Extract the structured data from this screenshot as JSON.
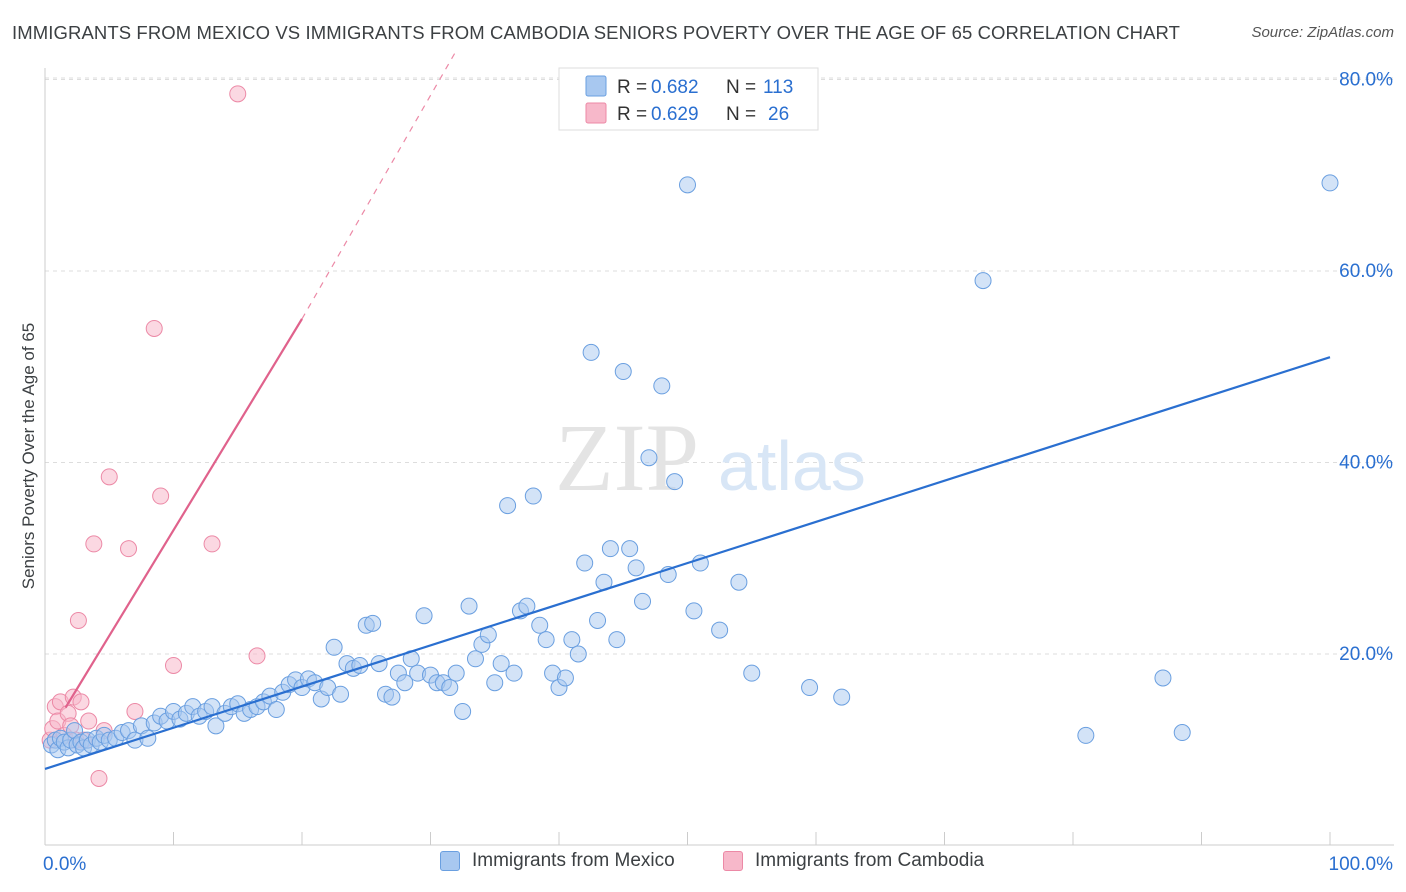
{
  "header": {
    "title": "IMMIGRANTS FROM MEXICO VS IMMIGRANTS FROM CAMBODIA SENIORS POVERTY OVER THE AGE OF 65 CORRELATION CHART",
    "source": "Source: ZipAtlas.com"
  },
  "watermark": {
    "zip": "ZIP",
    "atlas": "atlas"
  },
  "colors": {
    "mexico_fill": "#a8c8f0",
    "mexico_stroke": "#6a9fe0",
    "mexico_line": "#2a6fd0",
    "cambodia_fill": "#f7b8ca",
    "cambodia_stroke": "#ec89a6",
    "cambodia_line": "#e0628c",
    "value_text": "#2a6fd0",
    "grid": "#dddddd"
  },
  "legend": {
    "mexico": {
      "r_label": "R = ",
      "r_value": "0.682",
      "n_label": "N = ",
      "n_value": "113"
    },
    "cambodia": {
      "r_label": "R = ",
      "r_value": "0.629",
      "n_label": "N = ",
      "n_value": "26"
    }
  },
  "chart_data": {
    "type": "scatter",
    "title": "IMMIGRANTS FROM MEXICO VS IMMIGRANTS FROM CAMBODIA SENIORS POVERTY OVER THE AGE OF 65 CORRELATION CHART",
    "xlabel": "",
    "ylabel": "Seniors Poverty Over the Age of 65",
    "xlim": [
      0,
      100
    ],
    "ylim": [
      0,
      82
    ],
    "x_tick_labels": [
      {
        "value": 0,
        "label": "0.0%"
      },
      {
        "value": 100,
        "label": "100.0%"
      }
    ],
    "y_tick_labels": [
      {
        "value": 20,
        "label": "20.0%"
      },
      {
        "value": 40,
        "label": "40.0%"
      },
      {
        "value": 60,
        "label": "60.0%"
      },
      {
        "value": 80,
        "label": "80.0%"
      }
    ],
    "grid": true,
    "legend_position": "top-center",
    "series": [
      {
        "name": "Immigrants from Mexico",
        "r": 0.682,
        "n": 113,
        "trend": {
          "x": [
            0,
            100
          ],
          "y": [
            8.0,
            51.0
          ],
          "style": "solid"
        },
        "points": [
          [
            0.5,
            10.5
          ],
          [
            0.8,
            11
          ],
          [
            1,
            10
          ],
          [
            1.2,
            11.2
          ],
          [
            1.5,
            10.8
          ],
          [
            1.8,
            10.2
          ],
          [
            2,
            11
          ],
          [
            2.3,
            12
          ],
          [
            2.5,
            10.5
          ],
          [
            2.8,
            10.8
          ],
          [
            3,
            10.2
          ],
          [
            3.3,
            11
          ],
          [
            3.6,
            10.5
          ],
          [
            4,
            11.2
          ],
          [
            4.3,
            10.8
          ],
          [
            4.6,
            11.5
          ],
          [
            5,
            11
          ],
          [
            5.5,
            11.2
          ],
          [
            6,
            11.8
          ],
          [
            6.5,
            12
          ],
          [
            7,
            11
          ],
          [
            7.5,
            12.5
          ],
          [
            8,
            11.2
          ],
          [
            8.5,
            12.8
          ],
          [
            9,
            13.5
          ],
          [
            9.5,
            13
          ],
          [
            10,
            14
          ],
          [
            10.5,
            13.2
          ],
          [
            11,
            13.8
          ],
          [
            11.5,
            14.5
          ],
          [
            12,
            13.5
          ],
          [
            12.5,
            14
          ],
          [
            13,
            14.5
          ],
          [
            13.3,
            12.5
          ],
          [
            14,
            13.8
          ],
          [
            14.5,
            14.5
          ],
          [
            15,
            14.8
          ],
          [
            15.5,
            13.8
          ],
          [
            16,
            14.2
          ],
          [
            16.5,
            14.5
          ],
          [
            17,
            15
          ],
          [
            17.5,
            15.6
          ],
          [
            18,
            14.2
          ],
          [
            18.5,
            16
          ],
          [
            19,
            16.8
          ],
          [
            19.5,
            17.3
          ],
          [
            20,
            16.5
          ],
          [
            20.5,
            17.4
          ],
          [
            21,
            17
          ],
          [
            21.5,
            15.3
          ],
          [
            22,
            16.5
          ],
          [
            22.5,
            20.7
          ],
          [
            23,
            15.8
          ],
          [
            23.5,
            19
          ],
          [
            24,
            18.5
          ],
          [
            24.5,
            18.8
          ],
          [
            25,
            23
          ],
          [
            25.5,
            23.2
          ],
          [
            26,
            19
          ],
          [
            26.5,
            15.8
          ],
          [
            27,
            15.5
          ],
          [
            27.5,
            18
          ],
          [
            28,
            17
          ],
          [
            28.5,
            19.5
          ],
          [
            29,
            18
          ],
          [
            29.5,
            24
          ],
          [
            30,
            17.8
          ],
          [
            30.5,
            17
          ],
          [
            31,
            17
          ],
          [
            31.5,
            16.5
          ],
          [
            32,
            18
          ],
          [
            32.5,
            14
          ],
          [
            33,
            25
          ],
          [
            33.5,
            19.5
          ],
          [
            34,
            21
          ],
          [
            34.5,
            22
          ],
          [
            35,
            17
          ],
          [
            35.5,
            19
          ],
          [
            36,
            35.5
          ],
          [
            36.5,
            18
          ],
          [
            37,
            24.5
          ],
          [
            37.5,
            25
          ],
          [
            38,
            36.5
          ],
          [
            38.5,
            23
          ],
          [
            39,
            21.5
          ],
          [
            39.5,
            18
          ],
          [
            40,
            16.5
          ],
          [
            40.5,
            17.5
          ],
          [
            41,
            21.5
          ],
          [
            41.5,
            20
          ],
          [
            42,
            29.5
          ],
          [
            42.5,
            51.5
          ],
          [
            43,
            23.5
          ],
          [
            43.5,
            27.5
          ],
          [
            44,
            31
          ],
          [
            44.5,
            21.5
          ],
          [
            45,
            49.5
          ],
          [
            45.5,
            31
          ],
          [
            46,
            29
          ],
          [
            46.5,
            25.5
          ],
          [
            47,
            40.5
          ],
          [
            48,
            48
          ],
          [
            48.5,
            28.3
          ],
          [
            49,
            38
          ],
          [
            50,
            69
          ],
          [
            50.5,
            24.5
          ],
          [
            51,
            29.5
          ],
          [
            52.5,
            22.5
          ],
          [
            54,
            27.5
          ],
          [
            55,
            18
          ],
          [
            59.5,
            16.5
          ],
          [
            62,
            15.5
          ],
          [
            73,
            59
          ],
          [
            81,
            11.5
          ],
          [
            87,
            17.5
          ],
          [
            88.5,
            11.8
          ],
          [
            100,
            69.2
          ]
        ]
      },
      {
        "name": "Immigrants from Cambodia",
        "r": 0.629,
        "n": 26,
        "trend": {
          "x": [
            1.6,
            20
          ],
          "y": [
            14.4,
            55.0
          ],
          "style": "solid",
          "extension_x": [
            20,
            32
          ],
          "extension_y": [
            55.0,
            83.0
          ]
        },
        "points": [
          [
            0.4,
            11
          ],
          [
            0.6,
            12.2
          ],
          [
            0.8,
            14.5
          ],
          [
            1,
            13
          ],
          [
            1.2,
            15
          ],
          [
            1.5,
            11.5
          ],
          [
            1.8,
            13.8
          ],
          [
            2,
            12.5
          ],
          [
            2.2,
            15.5
          ],
          [
            2.4,
            11
          ],
          [
            2.6,
            23.5
          ],
          [
            2.8,
            15
          ],
          [
            3,
            11
          ],
          [
            3.4,
            13
          ],
          [
            3.8,
            31.5
          ],
          [
            4.2,
            7
          ],
          [
            4.6,
            12
          ],
          [
            5,
            38.5
          ],
          [
            6.5,
            31
          ],
          [
            7,
            14
          ],
          [
            8.5,
            54
          ],
          [
            9,
            36.5
          ],
          [
            10,
            18.8
          ],
          [
            13,
            31.5
          ],
          [
            15,
            78.5
          ],
          [
            16.5,
            19.8
          ]
        ]
      }
    ]
  }
}
